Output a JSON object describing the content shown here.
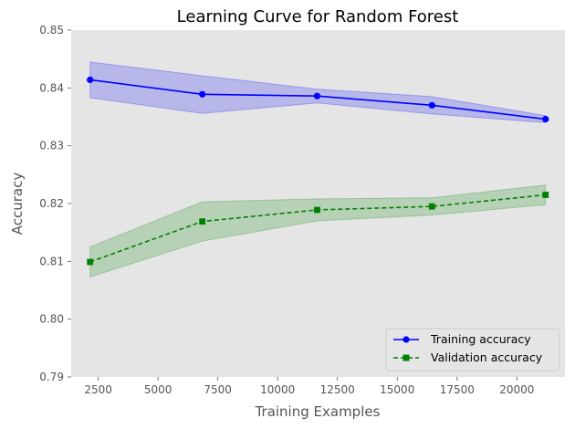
{
  "chart_data": {
    "type": "line",
    "title": "Learning Curve for Random Forest",
    "xlabel": "Training Examples",
    "ylabel": "Accuracy",
    "xlim": [
      1370,
      22010
    ],
    "ylim": [
      0.79,
      0.85
    ],
    "xticks": [
      2500,
      5000,
      7500,
      10000,
      12500,
      15000,
      17500,
      20000
    ],
    "yticks": [
      0.79,
      0.8,
      0.81,
      0.82,
      0.83,
      0.84,
      0.85
    ],
    "ytick_labels": [
      "0.79",
      "0.80",
      "0.81",
      "0.82",
      "0.83",
      "0.84",
      "0.85"
    ],
    "grid": false,
    "legend_position": "bottom-right",
    "x": [
      2160,
      6850,
      11650,
      16450,
      21200
    ],
    "series": [
      {
        "name": "Training accuracy",
        "values": [
          0.8414,
          0.8389,
          0.8386,
          0.837,
          0.8346
        ],
        "band_upper": [
          0.8445,
          0.8421,
          0.8398,
          0.8385,
          0.8352
        ],
        "band_lower": [
          0.8383,
          0.8356,
          0.8374,
          0.8355,
          0.834
        ],
        "color": "#0000ff",
        "band_color": "#0000ff",
        "linestyle": "solid",
        "marker": "circle"
      },
      {
        "name": "Validation accuracy",
        "values": [
          0.8099,
          0.8169,
          0.8189,
          0.8195,
          0.8215
        ],
        "band_upper": [
          0.8125,
          0.8203,
          0.8208,
          0.821,
          0.8232
        ],
        "band_lower": [
          0.8073,
          0.8135,
          0.817,
          0.818,
          0.8198
        ],
        "color": "#008000",
        "band_color": "#008000",
        "linestyle": "dashed",
        "marker": "square"
      }
    ]
  },
  "colors": {
    "plot_background": "#e5e5e5",
    "tick_color": "#555555"
  }
}
